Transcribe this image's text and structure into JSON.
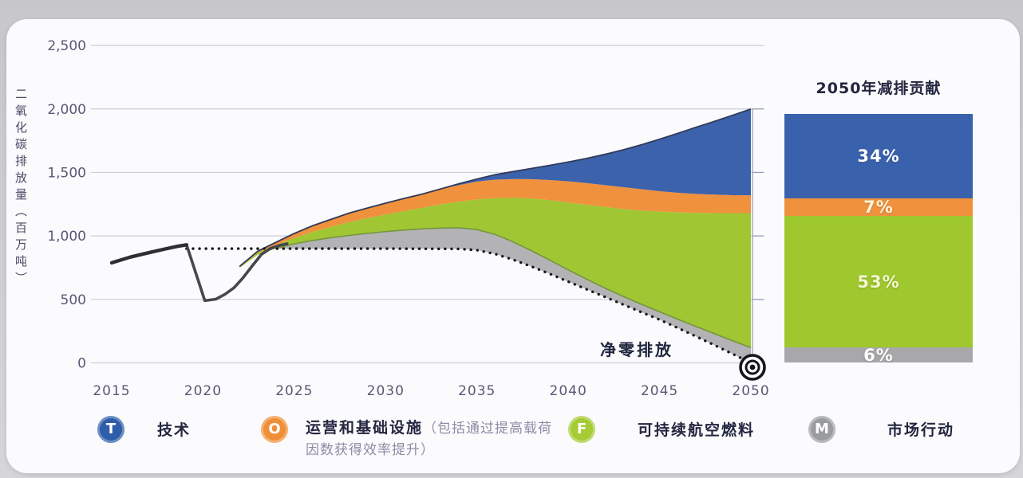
{
  "page": {
    "background_color": "#d2d2d6",
    "card_color": "#fbfbfd"
  },
  "colors": {
    "technology_blue": "#3c62ab",
    "operations_orange": "#f0913e",
    "saf_green": "#a0c733",
    "market_gray": "#b3b3b5",
    "bar_gray": "#a8a8ab",
    "history_line": "#2e2e35",
    "recovery_line": "#46464e",
    "dotted_line": "#17171c",
    "grid": "#c9cdd7",
    "right_axis": "#97a0b4",
    "axis_text": "#5b5776",
    "dark_text": "#23263f"
  },
  "chart_data": {
    "type": "area",
    "title": "",
    "xlabel": "",
    "ylabel": "二氧化碳排放量（百万吨）",
    "xlim": [
      2015,
      2050
    ],
    "ylim": [
      0,
      2500
    ],
    "grid": true,
    "yticks": [
      {
        "v": 0,
        "label": "0"
      },
      {
        "v": 500,
        "label": "500"
      },
      {
        "v": 1000,
        "label": "1,000"
      },
      {
        "v": 1500,
        "label": "1,500"
      },
      {
        "v": 2000,
        "label": "2,000"
      },
      {
        "v": 2500,
        "label": "2,500"
      }
    ],
    "xticks": [
      {
        "v": 2015,
        "label": "2015"
      },
      {
        "v": 2020,
        "label": "2020"
      },
      {
        "v": 2025,
        "label": "2025"
      },
      {
        "v": 2030,
        "label": "2030"
      },
      {
        "v": 2035,
        "label": "2035"
      },
      {
        "v": 2040,
        "label": "2040"
      },
      {
        "v": 2045,
        "label": "2045"
      },
      {
        "v": 2050,
        "label": "2050"
      }
    ],
    "right_axis_ticks": [
      500,
      1000,
      1500,
      2000
    ],
    "annotations": {
      "net_zero": {
        "label": "净零排放",
        "year": 2050,
        "value": 0
      }
    },
    "series": {
      "baseline_top": [
        [
          2022,
          760
        ],
        [
          2023,
          880
        ],
        [
          2024,
          950
        ],
        [
          2025,
          1020
        ],
        [
          2026,
          1080
        ],
        [
          2027,
          1130
        ],
        [
          2028,
          1180
        ],
        [
          2029,
          1220
        ],
        [
          2030,
          1258
        ],
        [
          2031,
          1295
        ],
        [
          2032,
          1330
        ],
        [
          2033,
          1370
        ],
        [
          2034,
          1410
        ],
        [
          2035,
          1448
        ],
        [
          2036,
          1482
        ],
        [
          2037,
          1508
        ],
        [
          2038,
          1532
        ],
        [
          2039,
          1556
        ],
        [
          2040,
          1582
        ],
        [
          2041,
          1610
        ],
        [
          2042,
          1642
        ],
        [
          2043,
          1678
        ],
        [
          2044,
          1718
        ],
        [
          2045,
          1762
        ],
        [
          2046,
          1808
        ],
        [
          2047,
          1856
        ],
        [
          2048,
          1902
        ],
        [
          2049,
          1950
        ],
        [
          2050,
          2000
        ]
      ],
      "blue_bottom": [
        [
          2033,
          1370
        ],
        [
          2034,
          1400
        ],
        [
          2035,
          1428
        ],
        [
          2036,
          1443
        ],
        [
          2037,
          1448
        ],
        [
          2038,
          1447
        ],
        [
          2039,
          1440
        ],
        [
          2040,
          1430
        ],
        [
          2041,
          1416
        ],
        [
          2042,
          1400
        ],
        [
          2043,
          1384
        ],
        [
          2044,
          1368
        ],
        [
          2045,
          1352
        ],
        [
          2046,
          1340
        ],
        [
          2047,
          1331
        ],
        [
          2048,
          1325
        ],
        [
          2049,
          1321
        ],
        [
          2050,
          1320
        ]
      ],
      "orange_bottom": [
        [
          2022,
          755
        ],
        [
          2023,
          868
        ],
        [
          2024,
          928
        ],
        [
          2025,
          985
        ],
        [
          2026,
          1032
        ],
        [
          2027,
          1072
        ],
        [
          2028,
          1108
        ],
        [
          2029,
          1140
        ],
        [
          2030,
          1168
        ],
        [
          2031,
          1196
        ],
        [
          2032,
          1222
        ],
        [
          2033,
          1248
        ],
        [
          2034,
          1270
        ],
        [
          2035,
          1288
        ],
        [
          2036,
          1298
        ],
        [
          2037,
          1300
        ],
        [
          2038,
          1295
        ],
        [
          2039,
          1282
        ],
        [
          2040,
          1264
        ],
        [
          2041,
          1246
        ],
        [
          2042,
          1228
        ],
        [
          2043,
          1212
        ],
        [
          2044,
          1200
        ],
        [
          2045,
          1192
        ],
        [
          2046,
          1186
        ],
        [
          2047,
          1182
        ],
        [
          2048,
          1180
        ],
        [
          2049,
          1180
        ],
        [
          2050,
          1180
        ]
      ],
      "green_bottom": [
        [
          2022,
          748
        ],
        [
          2023,
          852
        ],
        [
          2024,
          902
        ],
        [
          2025,
          938
        ],
        [
          2026,
          964
        ],
        [
          2027,
          986
        ],
        [
          2028,
          1004
        ],
        [
          2029,
          1020
        ],
        [
          2030,
          1034
        ],
        [
          2031,
          1046
        ],
        [
          2032,
          1056
        ],
        [
          2033,
          1062
        ],
        [
          2034,
          1064
        ],
        [
          2035,
          1050
        ],
        [
          2036,
          1012
        ],
        [
          2037,
          952
        ],
        [
          2038,
          882
        ],
        [
          2039,
          808
        ],
        [
          2040,
          732
        ],
        [
          2041,
          660
        ],
        [
          2042,
          590
        ],
        [
          2043,
          524
        ],
        [
          2044,
          462
        ],
        [
          2045,
          402
        ],
        [
          2046,
          344
        ],
        [
          2047,
          286
        ],
        [
          2048,
          230
        ],
        [
          2049,
          174
        ],
        [
          2050,
          120
        ]
      ],
      "net_zero_trajectory": [
        [
          2019.1,
          900
        ],
        [
          2024,
          900
        ],
        [
          2030,
          900
        ],
        [
          2034,
          898
        ],
        [
          2035,
          888
        ],
        [
          2036,
          858
        ],
        [
          2037,
          812
        ],
        [
          2038,
          758
        ],
        [
          2039,
          700
        ],
        [
          2040,
          640
        ],
        [
          2041,
          580
        ],
        [
          2042,
          520
        ],
        [
          2043,
          460
        ],
        [
          2044,
          400
        ],
        [
          2045,
          340
        ],
        [
          2046,
          275
        ],
        [
          2047,
          208
        ],
        [
          2048,
          140
        ],
        [
          2049,
          70
        ],
        [
          2050,
          0
        ]
      ],
      "historical": [
        [
          2015,
          788
        ],
        [
          2016,
          833
        ],
        [
          2017,
          867
        ],
        [
          2018,
          900
        ],
        [
          2018.6,
          918
        ],
        [
          2019.1,
          930
        ]
      ],
      "covid_recovery": [
        [
          2019.1,
          930
        ],
        [
          2020.1,
          490
        ],
        [
          2020.7,
          502
        ],
        [
          2021.2,
          540
        ],
        [
          2021.7,
          592
        ],
        [
          2022.2,
          672
        ],
        [
          2022.7,
          765
        ],
        [
          2023.2,
          855
        ],
        [
          2023.7,
          902
        ],
        [
          2024.2,
          926
        ],
        [
          2024.6,
          938
        ]
      ]
    },
    "contributions_2050_pct": {
      "技术": 34,
      "运营和基础设施": 7,
      "可持续航空燃料": 53,
      "市场行动": 6
    }
  },
  "bar_panel": {
    "title": "2050年减排贡献",
    "segments": [
      {
        "key": "technology",
        "label": "34%",
        "pct": 34,
        "color": "#3a61ac",
        "text_color": "#ffffff"
      },
      {
        "key": "operations",
        "label": "7%",
        "pct": 7,
        "color": "#f0913e",
        "text_color": "#fdf6d8"
      },
      {
        "key": "saf",
        "label": "53%",
        "pct": 53,
        "color": "#9fc72e",
        "text_color": "#f3f7cf"
      },
      {
        "key": "market",
        "label": "6%",
        "pct": 6,
        "color": "#a8a8ab",
        "text_color": "#ffffff"
      }
    ]
  },
  "legend": {
    "items": [
      {
        "letter": "T",
        "label": "技术",
        "note": "",
        "color": "#2e5ea9"
      },
      {
        "letter": "O",
        "label": "运营和基础设施",
        "note": "（包括通过提高载荷因数获得效率提升）",
        "color": "#ef9039"
      },
      {
        "letter": "F",
        "label": "可持续航空燃料",
        "note": "",
        "color": "#a5cc35"
      },
      {
        "letter": "M",
        "label": "市场行动",
        "note": "",
        "color": "#9b9ca0"
      }
    ]
  }
}
